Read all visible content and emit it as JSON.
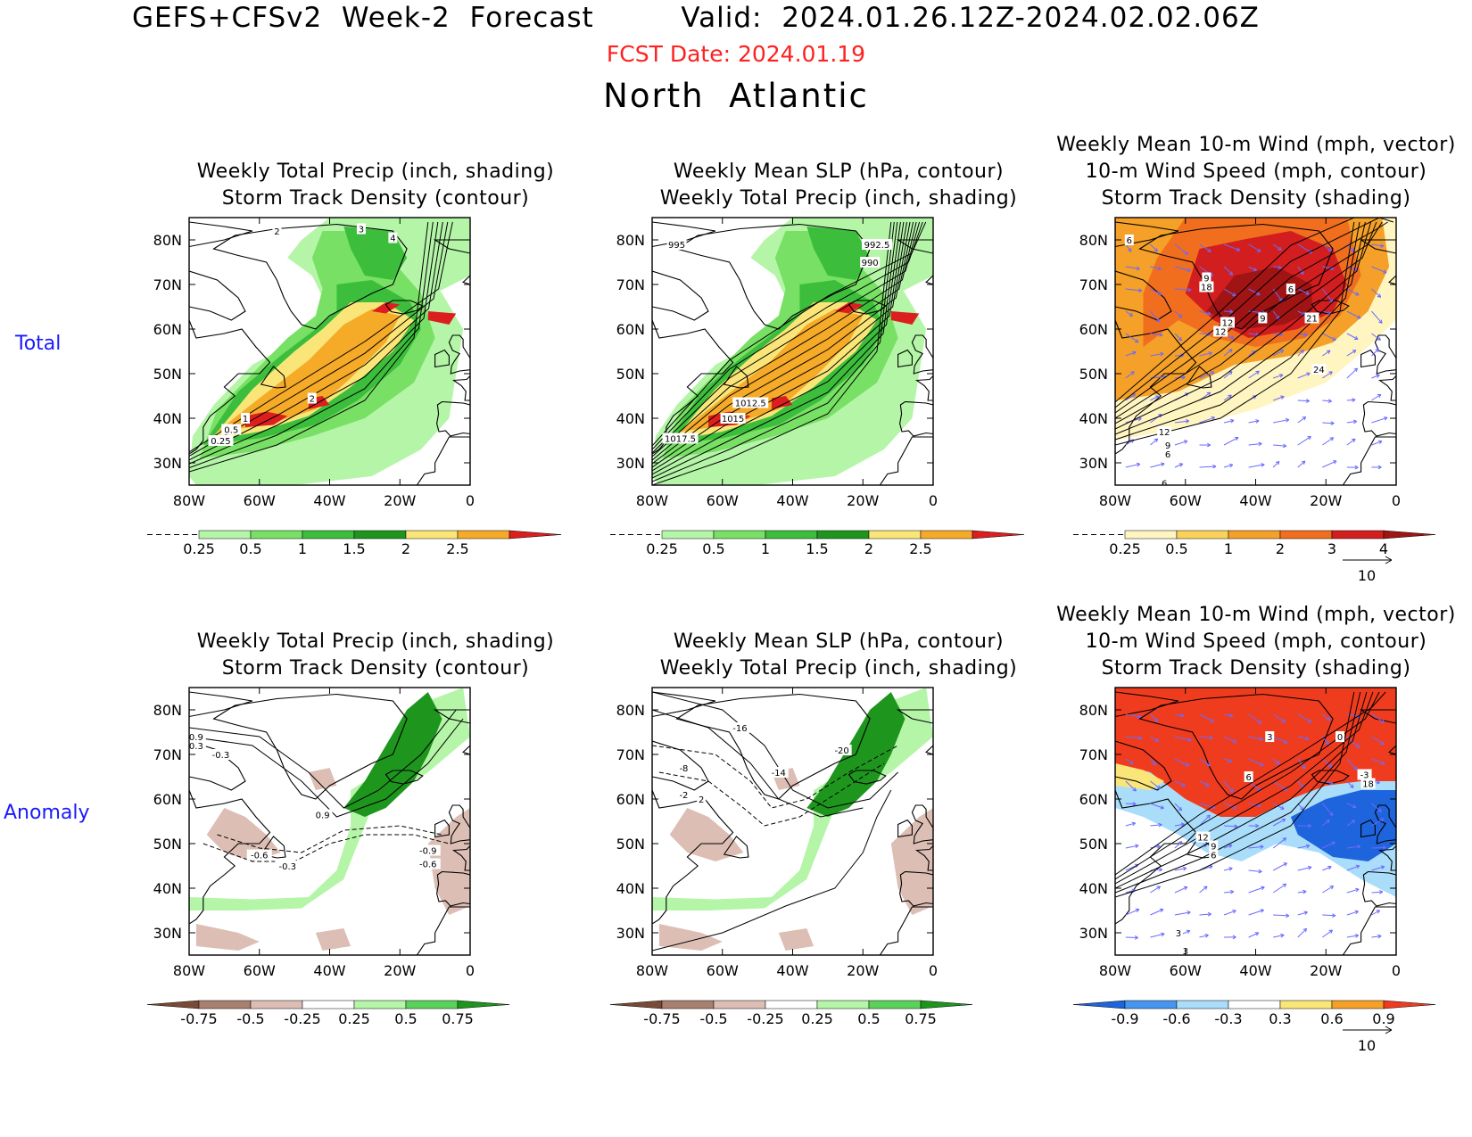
{
  "header": {
    "main_title": "GEFS+CFSv2  Week-2  Forecast         Valid:  2024.01.26.12Z-2024.02.02.06Z",
    "fcst_date": "FCST Date: 2024.01.19",
    "region": "North  Atlantic"
  },
  "rows": {
    "total": "Total",
    "anomaly": "Anomaly"
  },
  "axes": {
    "lat_ticks": [
      "80N",
      "70N",
      "60N",
      "50N",
      "40N",
      "30N"
    ],
    "lon_ticks": [
      "80W",
      "60W",
      "40W",
      "20W",
      "0"
    ],
    "lat_range": [
      25,
      85
    ],
    "lon_range": [
      -80,
      0
    ]
  },
  "colors": {
    "precip_total": [
      "#b4f5a8",
      "#78e064",
      "#3cbe3c",
      "#1e961e",
      "#fae678",
      "#f5aa28",
      "#dc1e1e"
    ],
    "precip_anom": [
      "#7a4a38",
      "#a88070",
      "#dcbeb4",
      "#ffffff",
      "#b4f5a8",
      "#5ad25a",
      "#1e961e"
    ],
    "storm_total": [
      "#fff5c0",
      "#fad25a",
      "#f5a028",
      "#f06e1e",
      "#d21e1e",
      "#a01414"
    ],
    "storm_anom": [
      "#1e64dc",
      "#4696f0",
      "#aaddfa",
      "#ffffff",
      "#fae678",
      "#f5a028",
      "#f03c1e"
    ],
    "wind_vector": "#6a6aff"
  },
  "chart_data": [
    {
      "panel": "total-precip-storm",
      "type": "heatmap",
      "title": [
        "Weekly Total Precip (inch, shading)",
        "Storm Track Density (contour)"
      ],
      "colorbar_labels": [
        "0.25",
        "0.5",
        "1",
        "1.5",
        "2",
        "2.5"
      ],
      "contour_labels": [
        "2",
        "3",
        "4",
        "2",
        "1",
        "0.5",
        "0.25"
      ]
    },
    {
      "panel": "total-slp-precip",
      "type": "heatmap",
      "title": [
        "Weekly Mean SLP (hPa, contour)",
        "Weekly Total Precip (inch, shading)"
      ],
      "colorbar_labels": [
        "0.25",
        "0.5",
        "1",
        "1.5",
        "2",
        "2.5"
      ],
      "contour_labels": [
        "995",
        "992.5",
        "990",
        "1012.5",
        "1015",
        "1017.5"
      ]
    },
    {
      "panel": "total-wind-storm",
      "type": "heatmap",
      "title": [
        "Weekly Mean 10-m Wind (mph, vector)",
        "10-m Wind Speed (mph, contour)",
        "Storm Track Density (shading)"
      ],
      "colorbar_labels": [
        "0.25",
        "0.5",
        "1",
        "2",
        "3",
        "4"
      ],
      "contour_labels": [
        "6",
        "9",
        "18",
        "6",
        "12",
        "9",
        "21",
        "12",
        "24",
        "12",
        "9",
        "6",
        "6"
      ],
      "vector_ref": "10"
    },
    {
      "panel": "anom-precip-storm",
      "type": "heatmap",
      "title": [
        "Weekly Total Precip (inch, shading)",
        "Storm Track Density (contour)"
      ],
      "colorbar_labels": [
        "-0.75",
        "-0.5",
        "-0.25",
        "0.25",
        "0.5",
        "0.75"
      ],
      "contour_labels": [
        "0.9",
        "0.3",
        "-0.3",
        "0.9",
        "-0.6",
        "-0.3",
        "-0.9",
        "-0.6"
      ]
    },
    {
      "panel": "anom-slp-precip",
      "type": "heatmap",
      "title": [
        "Weekly Mean SLP (hPa, contour)",
        "Weekly Total Precip (inch, shading)"
      ],
      "colorbar_labels": [
        "-0.75",
        "-0.5",
        "-0.25",
        "0.25",
        "0.5",
        "0.75"
      ],
      "contour_labels": [
        "-16",
        "-20",
        "-8",
        "-14",
        "-2",
        "2"
      ]
    },
    {
      "panel": "anom-wind-storm",
      "type": "heatmap",
      "title": [
        "Weekly Mean 10-m Wind (mph, vector)",
        "10-m Wind Speed (mph, contour)",
        "Storm Track Density (shading)"
      ],
      "colorbar_labels": [
        "-0.9",
        "-0.6",
        "-0.3",
        "0.3",
        "0.6",
        "0.9"
      ],
      "contour_labels": [
        "3",
        "0",
        "6",
        "-3",
        "18",
        "12",
        "9",
        "6",
        "3",
        "3"
      ],
      "vector_ref": "10"
    }
  ]
}
